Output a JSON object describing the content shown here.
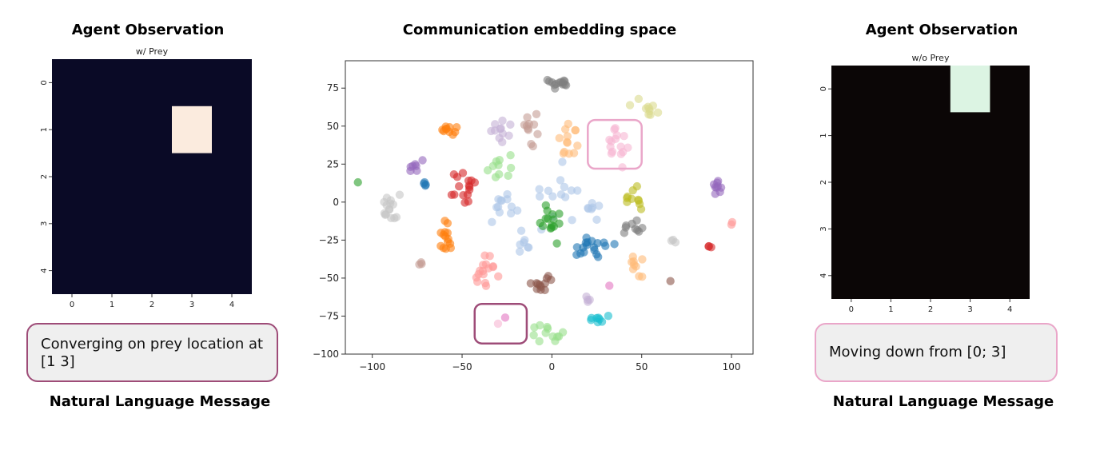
{
  "left_panel": {
    "heading": "Agent Observation",
    "subtitle": "w/ Prey",
    "message": "Converging on prey location at [1 3]",
    "footer": "Natural Language Message",
    "grid": {
      "rows": 5,
      "cols": 5,
      "highlight": [
        1,
        3
      ],
      "bg_color": "#0a0a26",
      "cell_color": "#fbebde",
      "x_ticks": [
        "0",
        "1",
        "2",
        "3",
        "4"
      ],
      "y_ticks": [
        "0",
        "1",
        "2",
        "3",
        "4"
      ]
    },
    "box_border": "#9e4c78"
  },
  "right_panel": {
    "heading": "Agent Observation",
    "subtitle": "w/o Prey",
    "message": "Moving down from [0; 3]",
    "footer": "Natural Language Message",
    "grid": {
      "rows": 5,
      "cols": 5,
      "highlight": [
        0,
        3
      ],
      "bg_color": "#0b0606",
      "cell_color": "#dcf4e3",
      "x_ticks": [
        "0",
        "1",
        "2",
        "3",
        "4"
      ],
      "y_ticks": [
        "0",
        "1",
        "2",
        "3",
        "4"
      ]
    },
    "box_border": "#eaa6c9"
  },
  "chart_data": {
    "type": "scatter",
    "title": "Communication embedding space",
    "xlim": [
      -115,
      112
    ],
    "ylim": [
      -100,
      93
    ],
    "x_ticks": [
      -100,
      -50,
      0,
      50,
      100
    ],
    "y_ticks": [
      -100,
      -75,
      -50,
      -25,
      0,
      25,
      50,
      75
    ],
    "grid": false,
    "clusters": [
      {
        "color": "#7f7f7f",
        "x": 3,
        "y": 78,
        "sx": 4,
        "sy": 2,
        "n": 14
      },
      {
        "color": "#dbdb8d",
        "x": 54,
        "y": 61,
        "sx": 4,
        "sy": 3,
        "n": 10
      },
      {
        "color": "#ff7f0e",
        "x": -58,
        "y": 47,
        "sx": 3,
        "sy": 2,
        "n": 10
      },
      {
        "color": "#c5b0d5",
        "x": -30,
        "y": 48,
        "sx": 3,
        "sy": 4,
        "n": 11
      },
      {
        "color": "#c49c94",
        "x": -10,
        "y": 47,
        "sx": 3,
        "sy": 5,
        "n": 11
      },
      {
        "color": "#ffbb78",
        "x": 10,
        "y": 40,
        "sx": 3,
        "sy": 6,
        "n": 13
      },
      {
        "color": "#f7b6d2",
        "x": 34,
        "y": 38,
        "sx": 4,
        "sy": 6,
        "n": 15
      },
      {
        "color": "#9467bd",
        "x": -77,
        "y": 24,
        "sx": 3,
        "sy": 2,
        "n": 7
      },
      {
        "color": "#1f77b4",
        "x": -70,
        "y": 12,
        "sx": 1,
        "sy": 1,
        "n": 4
      },
      {
        "color": "#2ca02c",
        "x": -108,
        "y": 13,
        "sx": 0.5,
        "sy": 0.5,
        "n": 1
      },
      {
        "color": "#d62728",
        "x": -48,
        "y": 12,
        "sx": 3,
        "sy": 7,
        "n": 16
      },
      {
        "color": "#98df8a",
        "x": -30,
        "y": 21,
        "sx": 9,
        "sy": 4,
        "n": 10
      },
      {
        "color": "#aec7e8",
        "x": 3,
        "y": 5,
        "sx": 8,
        "sy": 10,
        "n": 14
      },
      {
        "color": "#bcbd22",
        "x": 45,
        "y": 4,
        "sx": 3,
        "sy": 4,
        "n": 10
      },
      {
        "color": "#9467bd",
        "x": 93,
        "y": 8,
        "sx": 2,
        "sy": 3,
        "n": 9
      },
      {
        "color": "#c7c7c7",
        "x": -88,
        "y": -5,
        "sx": 3,
        "sy": 4,
        "n": 15
      },
      {
        "color": "#aec7e8",
        "x": -27,
        "y": -5,
        "sx": 4,
        "sy": 5,
        "n": 12
      },
      {
        "color": "#aec7e8",
        "x": 22,
        "y": -2,
        "sx": 2,
        "sy": 6,
        "n": 7
      },
      {
        "color": "#2ca02c",
        "x": 1,
        "y": -15,
        "sx": 3,
        "sy": 5,
        "n": 15
      },
      {
        "color": "#7f7f7f",
        "x": 45,
        "y": -16,
        "sx": 3,
        "sy": 3,
        "n": 9
      },
      {
        "color": "#ff9896",
        "x": 100,
        "y": -14,
        "sx": 0.5,
        "sy": 1,
        "n": 2
      },
      {
        "color": "#ff7f0e",
        "x": -59,
        "y": -23,
        "sx": 2,
        "sy": 5,
        "n": 14
      },
      {
        "color": "#aec7e8",
        "x": -16,
        "y": -28,
        "sx": 2,
        "sy": 4,
        "n": 7
      },
      {
        "color": "#c7c7c7",
        "x": 68,
        "y": -25,
        "sx": 1.5,
        "sy": 1,
        "n": 3
      },
      {
        "color": "#d62728",
        "x": 87,
        "y": -29,
        "sx": 1,
        "sy": 0.5,
        "n": 3
      },
      {
        "color": "#1f77b4",
        "x": 23,
        "y": -30,
        "sx": 6,
        "sy": 4,
        "n": 18
      },
      {
        "color": "#c49c94",
        "x": -72,
        "y": -41,
        "sx": 1,
        "sy": 1,
        "n": 3
      },
      {
        "color": "#ffbb78",
        "x": 46,
        "y": -41,
        "sx": 2,
        "sy": 4,
        "n": 9
      },
      {
        "color": "#ff9896",
        "x": -37,
        "y": -46,
        "sx": 4,
        "sy": 5,
        "n": 16
      },
      {
        "color": "#8c564b",
        "x": -8,
        "y": -54,
        "sx": 4,
        "sy": 3,
        "n": 12
      },
      {
        "color": "#e377c2",
        "x": 32,
        "y": -55,
        "sx": 0.5,
        "sy": 0.5,
        "n": 1
      },
      {
        "color": "#8c564b",
        "x": 66,
        "y": -52,
        "sx": 0.5,
        "sy": 0.5,
        "n": 1
      },
      {
        "color": "#c5b0d5",
        "x": 20,
        "y": -65,
        "sx": 1,
        "sy": 2,
        "n": 4
      },
      {
        "color": "#17becf",
        "x": 24,
        "y": -78,
        "sx": 3,
        "sy": 2,
        "n": 8
      },
      {
        "color": "#e377c2",
        "x": -26,
        "y": -76,
        "sx": 0.5,
        "sy": 0.5,
        "n": 1
      },
      {
        "color": "#f7b6d2",
        "x": -30,
        "y": -80,
        "sx": 0.5,
        "sy": 0.5,
        "n": 1
      },
      {
        "color": "#98df8a",
        "x": -3,
        "y": -87,
        "sx": 5,
        "sy": 3,
        "n": 12
      }
    ],
    "highlight_boxes": [
      {
        "color": "#eaa6c9",
        "x0": 20,
        "x1": 50,
        "y0": 22,
        "y1": 54
      },
      {
        "color": "#9e4c78",
        "x0": -43,
        "x1": -14,
        "y0": -93,
        "y1": -67
      }
    ]
  }
}
